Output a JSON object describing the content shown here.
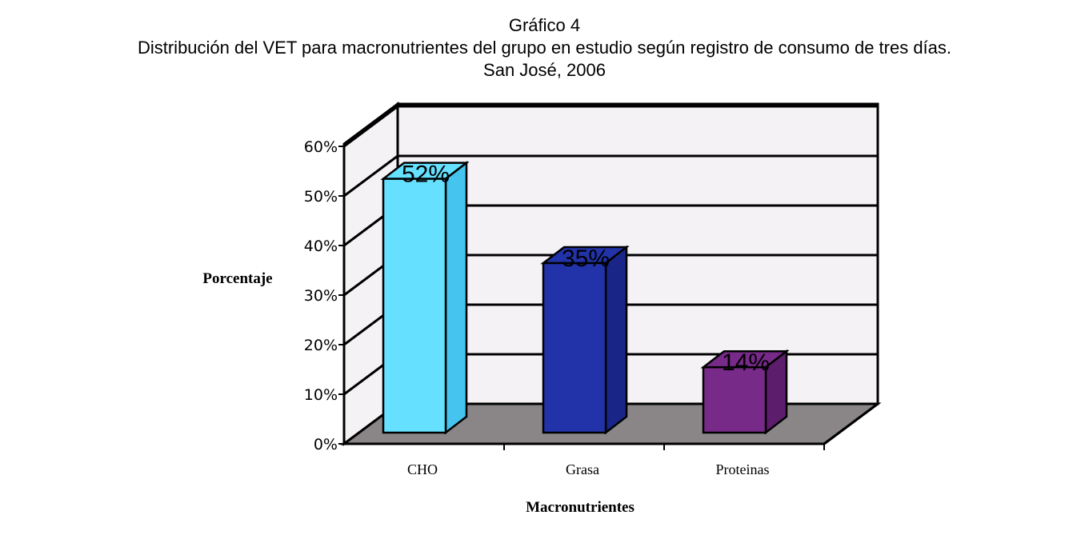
{
  "chart_data": {
    "type": "bar",
    "title": "Gráfico 4",
    "subtitle": "Distribución del VET para macronutrientes del grupo en estudio según registro de consumo de tres días.",
    "subtitle2": "San José, 2006",
    "xlabel": "Macronutrientes",
    "ylabel": "Porcentaje",
    "ylim": [
      0,
      60
    ],
    "yticks": [
      "0%",
      "10%",
      "20%",
      "30%",
      "40%",
      "50%",
      "60%"
    ],
    "categories": [
      "CHO",
      "Grasa",
      "Proteinas"
    ],
    "values": [
      52,
      35,
      14
    ],
    "data_labels": [
      "52%",
      "35%",
      "14%"
    ],
    "colors": [
      "#66e0ff",
      "#2233aa",
      "#772a88"
    ],
    "side_colors": [
      "#44c4ee",
      "#1a2588",
      "#5c1e6c"
    ],
    "grid": true,
    "style": "3d"
  }
}
